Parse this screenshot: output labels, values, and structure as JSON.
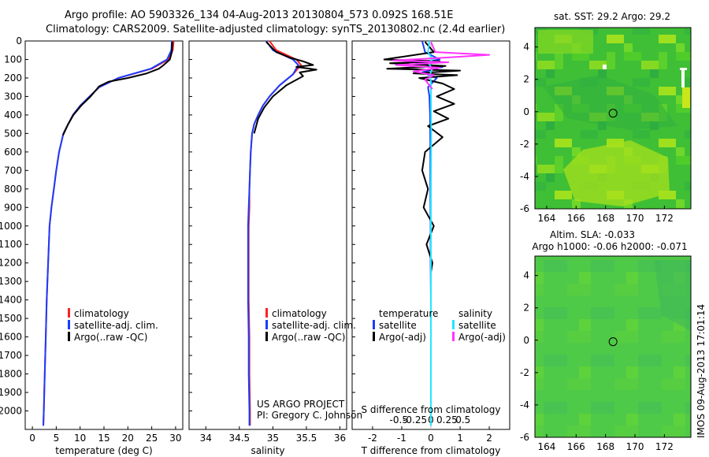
{
  "header": {
    "line1": "Argo profile: AO 5903326_134 04-Aug-2013 20130804_573 0.092S 168.51E",
    "line2": "Climatology: CARS2009. Satellite-adjusted climatology: synTS_20130802.nc (2.4d earlier)"
  },
  "credit": {
    "line1": "US ARGO PROJECT",
    "line2": "PI: Gregory C. Johnson"
  },
  "stamp": "IMOS 09-Aug-2013 17:01:14",
  "colors": {
    "climatology": "#ff2020",
    "satellite": "#1a3cff",
    "argo": "#000000",
    "sal_sat": "#22e6ff",
    "sal_argo": "#ff33ff"
  },
  "chart_data": [
    {
      "type": "line",
      "xlabel": "temperature (deg C)",
      "ylim": [
        2100,
        0
      ],
      "yticks": [
        0,
        100,
        200,
        300,
        400,
        500,
        600,
        700,
        800,
        900,
        1000,
        1100,
        1200,
        1300,
        1400,
        1500,
        1600,
        1700,
        1800,
        1900,
        2000
      ],
      "xlim": [
        -1.5,
        31.5
      ],
      "xticks": [
        0,
        5,
        10,
        15,
        20,
        25,
        30
      ],
      "legend": [
        "climatology",
        "satellite-adj. clim.",
        "Argo(..raw -QC)"
      ],
      "series": [
        {
          "name": "climatology",
          "color": "#ff2020",
          "x": [
            29.6,
            29.4,
            28.5,
            25,
            18,
            14,
            12,
            10,
            8.5,
            7.5,
            6.5,
            5.6,
            5,
            4.5,
            4,
            3.6,
            3.3,
            3,
            2.8,
            2.6,
            2.4,
            2.3
          ],
          "y": [
            0,
            50,
            100,
            150,
            200,
            250,
            300,
            350,
            400,
            450,
            500,
            600,
            700,
            800,
            900,
            1000,
            1200,
            1400,
            1600,
            1800,
            2000,
            2080
          ]
        },
        {
          "name": "satellite-adj. clim.",
          "color": "#1a3cff",
          "x": [
            29.2,
            29.1,
            28.2,
            24.8,
            18,
            14,
            12,
            10,
            8.5,
            7.5,
            6.5,
            5.6,
            5,
            4.5,
            4,
            3.6,
            3.3,
            3,
            2.8,
            2.6,
            2.4,
            2.3
          ],
          "y": [
            0,
            50,
            100,
            150,
            200,
            250,
            300,
            350,
            400,
            450,
            500,
            600,
            700,
            800,
            900,
            1000,
            1200,
            1400,
            1600,
            1800,
            2000,
            2080
          ]
        },
        {
          "name": "Argo(..raw -QC)",
          "color": "#000000",
          "x": [
            29.3,
            29.2,
            28.8,
            27.5,
            26.5,
            24,
            20,
            16,
            14,
            12.2,
            10.2,
            8.6,
            7.5,
            6.4
          ],
          "y": [
            5,
            60,
            100,
            130,
            150,
            175,
            200,
            220,
            245,
            300,
            350,
            400,
            450,
            510
          ]
        }
      ]
    },
    {
      "type": "line",
      "xlabel": "salinity",
      "ylim": [
        2100,
        0
      ],
      "xlim": [
        33.75,
        36.1
      ],
      "xticks": [
        34,
        34.5,
        35,
        35.5,
        36
      ],
      "legend": [
        "climatology",
        "satellite-adj. clim.",
        "Argo(..raw -QC)"
      ],
      "series": [
        {
          "name": "climatology",
          "color": "#ff2020",
          "x": [
            34.95,
            35.05,
            35.35,
            35.42,
            35.3,
            35.1,
            34.95,
            34.85,
            34.78,
            34.72,
            34.69,
            34.67,
            34.66,
            34.65,
            34.65,
            34.64,
            34.64,
            34.64,
            34.65,
            34.65,
            34.66,
            34.66
          ],
          "y": [
            0,
            50,
            100,
            130,
            180,
            240,
            300,
            350,
            400,
            450,
            500,
            600,
            700,
            800,
            900,
            1000,
            1200,
            1400,
            1600,
            1800,
            2000,
            2080
          ]
        },
        {
          "name": "satellite-adj. clim.",
          "color": "#1a3cff",
          "x": [
            34.9,
            35.0,
            35.3,
            35.38,
            35.3,
            35.1,
            34.95,
            34.85,
            34.78,
            34.72,
            34.69,
            34.67,
            34.66,
            34.65,
            34.64,
            34.63,
            34.63,
            34.63,
            34.64,
            34.64,
            34.65,
            34.65
          ],
          "y": [
            0,
            50,
            100,
            130,
            180,
            240,
            300,
            350,
            400,
            450,
            500,
            600,
            700,
            800,
            900,
            1000,
            1200,
            1400,
            1600,
            1800,
            2000,
            2080
          ]
        },
        {
          "name": "Argo(..raw -QC)",
          "color": "#000000",
          "x": [
            34.9,
            35.05,
            35.25,
            35.45,
            35.6,
            35.35,
            35.65,
            35.4,
            35.45,
            35.2,
            35.0,
            34.87,
            34.78,
            34.72
          ],
          "y": [
            5,
            60,
            90,
            110,
            130,
            140,
            155,
            170,
            190,
            240,
            300,
            360,
            420,
            500
          ]
        }
      ]
    },
    {
      "type": "line",
      "xlabel": "T difference from climatology",
      "xlabel_top": "S difference from climatology",
      "ylim": [
        2100,
        0
      ],
      "xlim": [
        -2.7,
        2.7
      ],
      "xticks": [
        -2,
        -1,
        0,
        1,
        2
      ],
      "xticks_S": [
        "-0.5",
        "-0.25",
        "0",
        "0.25",
        "0.5"
      ],
      "legend_titles": [
        "temperature",
        "salinity"
      ],
      "legend": [
        "satellite",
        "Argo(-adj)",
        "satellite",
        "Argo(-adj)"
      ],
      "series": [
        {
          "name": "satellite",
          "color": "#1a3cff",
          "x": [
            -0.3,
            -0.2,
            0.3,
            -0.5,
            0.4,
            -0.3,
            0.2,
            -0.1,
            -0.05,
            -0.03,
            -0.02,
            -0.02,
            -0.01,
            -0.01,
            0,
            0,
            0
          ],
          "y": [
            0,
            60,
            100,
            120,
            140,
            170,
            200,
            250,
            300,
            400,
            600,
            800,
            1000,
            1200,
            1400,
            1800,
            2080
          ]
        },
        {
          "name": "Argo(-adj)",
          "color": "#000000",
          "x": [
            -0.2,
            0.1,
            -1.6,
            0.3,
            -1.4,
            0.5,
            -1.5,
            1.0,
            -0.6,
            0.9,
            -0.4,
            0.4,
            0.8,
            0.2,
            0.8,
            0.1,
            0.6,
            -0.1,
            0.4,
            -0.2,
            -0.3,
            -0.1,
            -0.25,
            0.1,
            -0.15,
            0.05,
            0
          ],
          "y": [
            5,
            60,
            100,
            110,
            120,
            135,
            150,
            160,
            175,
            185,
            200,
            230,
            260,
            300,
            340,
            380,
            420,
            460,
            520,
            600,
            700,
            800,
            900,
            1000,
            1100,
            1200,
            1250
          ]
        },
        {
          "name": "satellite",
          "color": "#22e6ff",
          "x": [
            -0.05,
            -0.1,
            0.05,
            -0.08,
            0.04,
            -0.03,
            0,
            0,
            0.01,
            0,
            0,
            0
          ],
          "y": [
            0,
            60,
            100,
            120,
            150,
            180,
            220,
            300,
            500,
            800,
            1200,
            2080
          ]
        },
        {
          "name": "Argo(-adj)",
          "color": "#ff33ff",
          "x": [
            0,
            0.15,
            2.0,
            0.5,
            -1.3,
            0.6,
            -1.2,
            0.3,
            -0.6,
            0.1,
            -0.2,
            0.05
          ],
          "y": [
            5,
            60,
            75,
            90,
            105,
            115,
            130,
            145,
            165,
            185,
            210,
            260
          ]
        }
      ]
    },
    {
      "type": "heatmap",
      "title": "sat. SST: 29.2 Argo: 29.2",
      "xticks": [
        164,
        166,
        168,
        170,
        172
      ],
      "yticks": [
        4,
        2,
        0,
        -2,
        -4,
        -6
      ],
      "xlim": [
        163.2,
        173.8
      ],
      "ylim": [
        -6,
        5.2
      ],
      "marker": {
        "lon": 168.51,
        "lat": -0.092
      }
    },
    {
      "type": "heatmap",
      "title_line1": "Altim. SLA: -0.033",
      "title_line2": "Argo h1000: -0.06 h2000: -0.071",
      "xticks": [
        164,
        166,
        168,
        170,
        172
      ],
      "yticks": [
        4,
        2,
        0,
        -2,
        -4,
        -6
      ],
      "xlim": [
        163.2,
        173.8
      ],
      "ylim": [
        -6,
        5.2
      ],
      "marker": {
        "lon": 168.51,
        "lat": -0.092
      }
    }
  ]
}
